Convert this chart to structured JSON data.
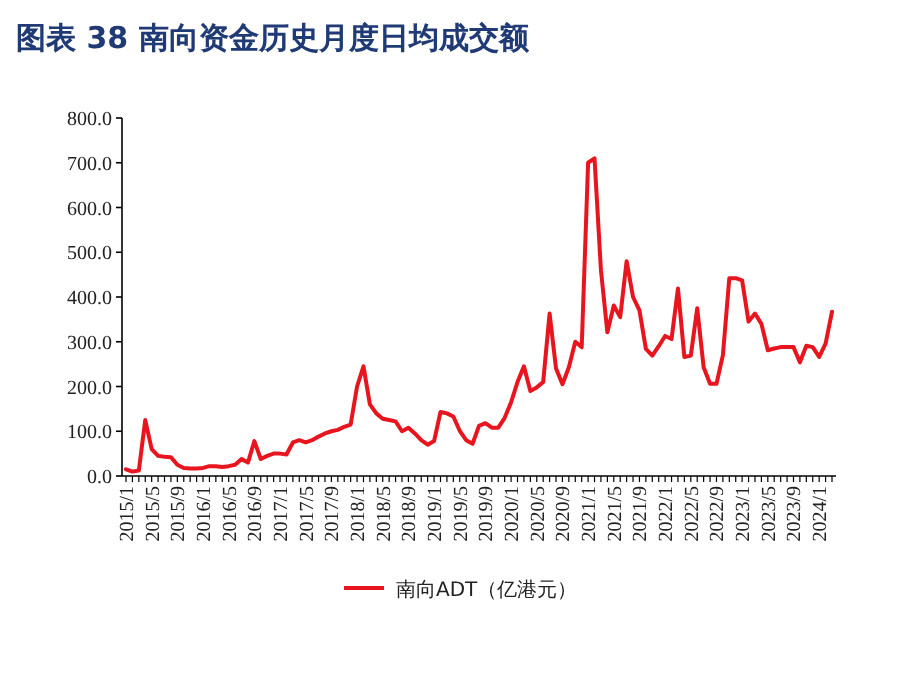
{
  "chart_data": {
    "type": "line",
    "title": "图表 38    南向资金历史月度日均成交额",
    "categories": [
      "2015/1",
      null,
      null,
      null,
      "2015/5",
      null,
      null,
      null,
      "2015/9",
      null,
      null,
      null,
      "2016/1",
      null,
      null,
      null,
      "2016/5",
      null,
      null,
      null,
      "2016/9",
      null,
      null,
      null,
      "2017/1",
      null,
      null,
      null,
      "2017/5",
      null,
      null,
      null,
      "2017/9",
      null,
      null,
      null,
      "2018/1",
      null,
      null,
      null,
      "2018/5",
      null,
      null,
      null,
      "2018/9",
      null,
      null,
      null,
      "2019/1",
      null,
      null,
      null,
      "2019/5",
      null,
      null,
      null,
      "2019/9",
      null,
      null,
      null,
      "2020/1",
      null,
      null,
      null,
      "2020/5",
      null,
      null,
      null,
      "2020/9",
      null,
      null,
      null,
      "2021/1",
      null,
      null,
      null,
      "2021/5",
      null,
      null,
      null,
      "2021/9",
      null,
      null,
      null,
      "2022/1",
      null,
      null,
      null,
      "2022/5",
      null,
      null,
      null,
      "2022/9",
      null,
      null,
      null,
      "2023/1",
      null,
      null,
      null,
      "2023/5",
      null,
      null,
      null,
      "2023/9",
      null,
      null,
      null,
      "2024/1",
      null,
      null
    ],
    "series": [
      {
        "name": "南向ADT（亿港元）",
        "color": "#e8141e",
        "values": [
          15,
          10,
          12,
          125,
          60,
          45,
          43,
          42,
          25,
          18,
          17,
          17,
          18,
          22,
          22,
          20,
          22,
          25,
          38,
          30,
          78,
          38,
          45,
          50,
          50,
          48,
          75,
          80,
          75,
          80,
          88,
          95,
          100,
          103,
          110,
          115,
          200,
          245,
          160,
          140,
          128,
          125,
          122,
          100,
          108,
          95,
          80,
          70,
          78,
          143,
          140,
          133,
          101,
          80,
          72,
          112,
          118,
          108,
          108,
          130,
          165,
          210,
          245,
          190,
          198,
          210,
          363,
          240,
          205,
          243,
          300,
          288,
          700,
          710,
          460,
          321,
          381,
          355,
          480,
          400,
          370,
          284,
          269,
          290,
          313,
          306,
          419,
          266,
          269,
          375,
          243,
          206,
          206,
          270,
          442,
          442,
          437,
          345,
          363,
          340,
          281,
          285,
          288,
          288,
          288,
          254,
          291,
          288,
          266,
          296,
          367
        ]
      }
    ],
    "ylim": [
      0,
      800
    ],
    "yticks": [
      {
        "value": 0,
        "label": "0.0"
      },
      {
        "value": 100,
        "label": "100.0"
      },
      {
        "value": 200,
        "label": "200.0"
      },
      {
        "value": 300,
        "label": "300.0"
      },
      {
        "value": 400,
        "label": "400.0"
      },
      {
        "value": 500,
        "label": "500.0"
      },
      {
        "value": 600,
        "label": "600.0"
      },
      {
        "value": 700,
        "label": "700.0"
      },
      {
        "value": 800,
        "label": "800.0"
      }
    ],
    "grid": false,
    "legend": "bottom",
    "marker": "none",
    "line_style": "solid"
  }
}
